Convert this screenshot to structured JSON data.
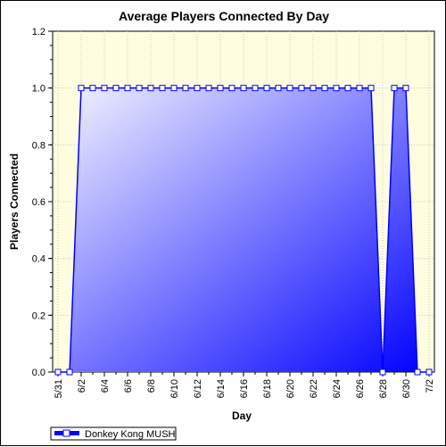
{
  "chart_data": {
    "type": "area",
    "title": "Average Players Connected By Day",
    "xlabel": "Day",
    "ylabel": "Players Connected",
    "ylim": [
      0,
      1.2
    ],
    "y_ticks": [
      "0.0",
      "0.2",
      "0.4",
      "0.6",
      "0.8",
      "1.0",
      "1.2"
    ],
    "x_tick_labels": [
      "5/31",
      "6/2",
      "6/4",
      "6/6",
      "6/8",
      "6/10",
      "6/12",
      "6/14",
      "6/16",
      "6/18",
      "6/20",
      "6/22",
      "6/24",
      "6/26",
      "6/28",
      "6/30",
      "7/2"
    ],
    "x": [
      "5/31",
      "6/1",
      "6/2",
      "6/3",
      "6/4",
      "6/5",
      "6/6",
      "6/7",
      "6/8",
      "6/9",
      "6/10",
      "6/11",
      "6/12",
      "6/13",
      "6/14",
      "6/15",
      "6/16",
      "6/17",
      "6/18",
      "6/19",
      "6/20",
      "6/21",
      "6/22",
      "6/23",
      "6/24",
      "6/25",
      "6/26",
      "6/27",
      "6/28",
      "6/29",
      "6/30",
      "7/1",
      "7/2"
    ],
    "series": [
      {
        "name": "Donkey Kong MUSH",
        "values": [
          0,
          0,
          1,
          1,
          1,
          1,
          1,
          1,
          1,
          1,
          1,
          1,
          1,
          1,
          1,
          1,
          1,
          1,
          1,
          1,
          1,
          1,
          1,
          1,
          1,
          1,
          1,
          1,
          0,
          1,
          1,
          0,
          0
        ]
      }
    ],
    "grid": true,
    "legend_position": "bottom-left"
  },
  "colors": {
    "plot_background": "#fffde0",
    "series_line": "#0000ff",
    "fill_light": "#f4f4ff",
    "fill_dark": "#0000ff",
    "grid": "#c8c8c8"
  }
}
